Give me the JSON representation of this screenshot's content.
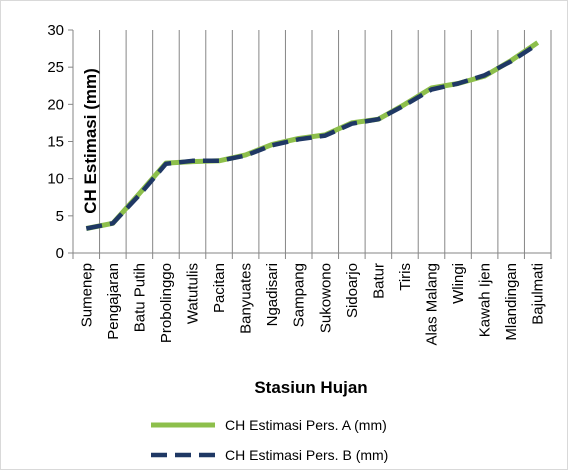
{
  "chart_data": {
    "type": "line",
    "xlabel": "Stasiun Hujan",
    "ylabel": "CH Estimasi (mm)",
    "ylim": [
      0,
      30
    ],
    "yticks": [
      "0",
      "5",
      "10",
      "15",
      "20",
      "25",
      "30"
    ],
    "grid": "vertical",
    "legend_position": "bottom",
    "categories": [
      "Sumenep",
      "Pengajaran",
      "Batu Putih",
      "Probolinggo",
      "Watutulis",
      "Pacitan",
      "Banyuates",
      "Ngadisari",
      "Sampang",
      "Sukowono",
      "Sidoarjo",
      "Batur",
      "Tiris",
      "Alas Malang",
      "Wlingi",
      "Kawah Ijen",
      "Mlandingan",
      "Bajulmati"
    ],
    "series": [
      {
        "name": "CH Estimasi Pers. A (mm)",
        "color": "#8dbf4b",
        "style": "solid",
        "values": [
          3.3,
          4.0,
          8.0,
          12.1,
          12.3,
          12.4,
          13.2,
          14.6,
          15.4,
          15.9,
          17.5,
          18.0,
          20.0,
          22.2,
          22.8,
          23.8,
          25.9,
          28.3
        ]
      },
      {
        "name": "CH Estimasi Pers. B (mm)",
        "color": "#1f3864",
        "style": "dashed",
        "values": [
          3.3,
          4.0,
          7.8,
          12.0,
          12.4,
          12.4,
          13.1,
          14.5,
          15.3,
          15.8,
          17.4,
          18.0,
          19.9,
          22.0,
          22.8,
          23.9,
          25.8,
          28.1
        ]
      }
    ]
  }
}
